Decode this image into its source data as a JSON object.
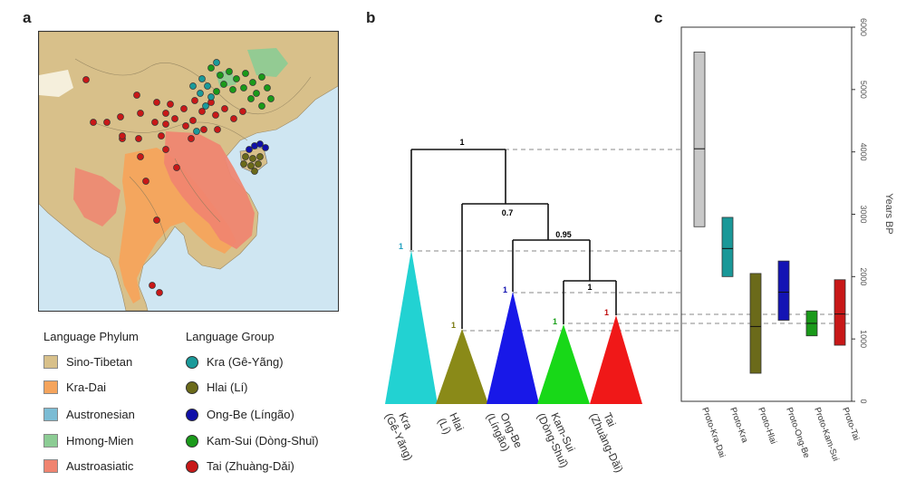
{
  "panels": {
    "a": "a",
    "b": "b",
    "c": "c"
  },
  "legend": {
    "phylum_title": "Language Phylum",
    "group_title": "Language Group",
    "phyla": [
      {
        "label": "Sino-Tibetan",
        "color": "#d8c08a"
      },
      {
        "label": "Kra-Dai",
        "color": "#f5a45c"
      },
      {
        "label": "Austronesian",
        "color": "#7cbcd4"
      },
      {
        "label": "Hmong-Mien",
        "color": "#8ccc94"
      },
      {
        "label": "Austroasiatic",
        "color": "#f08470"
      }
    ],
    "groups": [
      {
        "label": "Kra (Gê-Yãng)",
        "color": "#1a9a9a"
      },
      {
        "label": "Hlai (Lí)",
        "color": "#6b6a1a"
      },
      {
        "label": "Ong-Be (Língão)",
        "color": "#1010a8"
      },
      {
        "label": "Kam-Sui (Dòng-Shuǐ)",
        "color": "#1a9a1a"
      },
      {
        "label": "Tai (Zhuàng-Dǎi)",
        "color": "#c81818"
      }
    ]
  },
  "tree": {
    "node_labels": [
      "1",
      "0.7",
      "0.95",
      "1"
    ],
    "clades": [
      {
        "name": "Kra",
        "alt": "(Gê-Yãng)",
        "support": "1",
        "color": "#22d2d2",
        "support_color": "#20a0c0"
      },
      {
        "name": "Hlai",
        "alt": "(Lí)",
        "support": "1",
        "color": "#8a8a18",
        "support_color": "#7a7a10"
      },
      {
        "name": "Ong-Be",
        "alt": "(Língão)",
        "support": "1",
        "color": "#1818e8",
        "support_color": "#1010b0"
      },
      {
        "name": "Kam-Sui",
        "alt": "(Dòng-Shuǐ)",
        "support": "1",
        "color": "#18d818",
        "support_color": "#18a018"
      },
      {
        "name": "Tai",
        "alt": "(Zhuàng-Dǎi)",
        "support": "1",
        "color": "#f01818",
        "support_color": "#c01010"
      }
    ]
  },
  "chart_data": {
    "type": "boxplot",
    "ylabel": "Years BP",
    "ylim": [
      0,
      6000
    ],
    "yticks": [
      0,
      1000,
      2000,
      3000,
      4000,
      5000,
      6000
    ],
    "categories": [
      "Proto-Kra-Dai",
      "Proto-Kra",
      "Proto-Hlai",
      "Proto-Ong-Be",
      "Proto-Kam-Sui",
      "Proto-Tai"
    ],
    "ranges": [
      {
        "name": "Proto-Kra-Dai",
        "low": 2800,
        "median": 4050,
        "high": 5600,
        "color": "#c8c8c8"
      },
      {
        "name": "Proto-Kra",
        "low": 2000,
        "median": 2450,
        "high": 2950,
        "color": "#1a9898"
      },
      {
        "name": "Proto-Hlai",
        "low": 450,
        "median": 1200,
        "high": 2050,
        "color": "#6b6a1a"
      },
      {
        "name": "Proto-Ong-Be",
        "low": 1300,
        "median": 1750,
        "high": 2250,
        "color": "#1414b4"
      },
      {
        "name": "Proto-Kam-Sui",
        "low": 1050,
        "median": 1250,
        "high": 1450,
        "color": "#1a9a1a"
      },
      {
        "name": "Proto-Tai",
        "low": 900,
        "median": 1400,
        "high": 1950,
        "color": "#c81818"
      }
    ]
  }
}
